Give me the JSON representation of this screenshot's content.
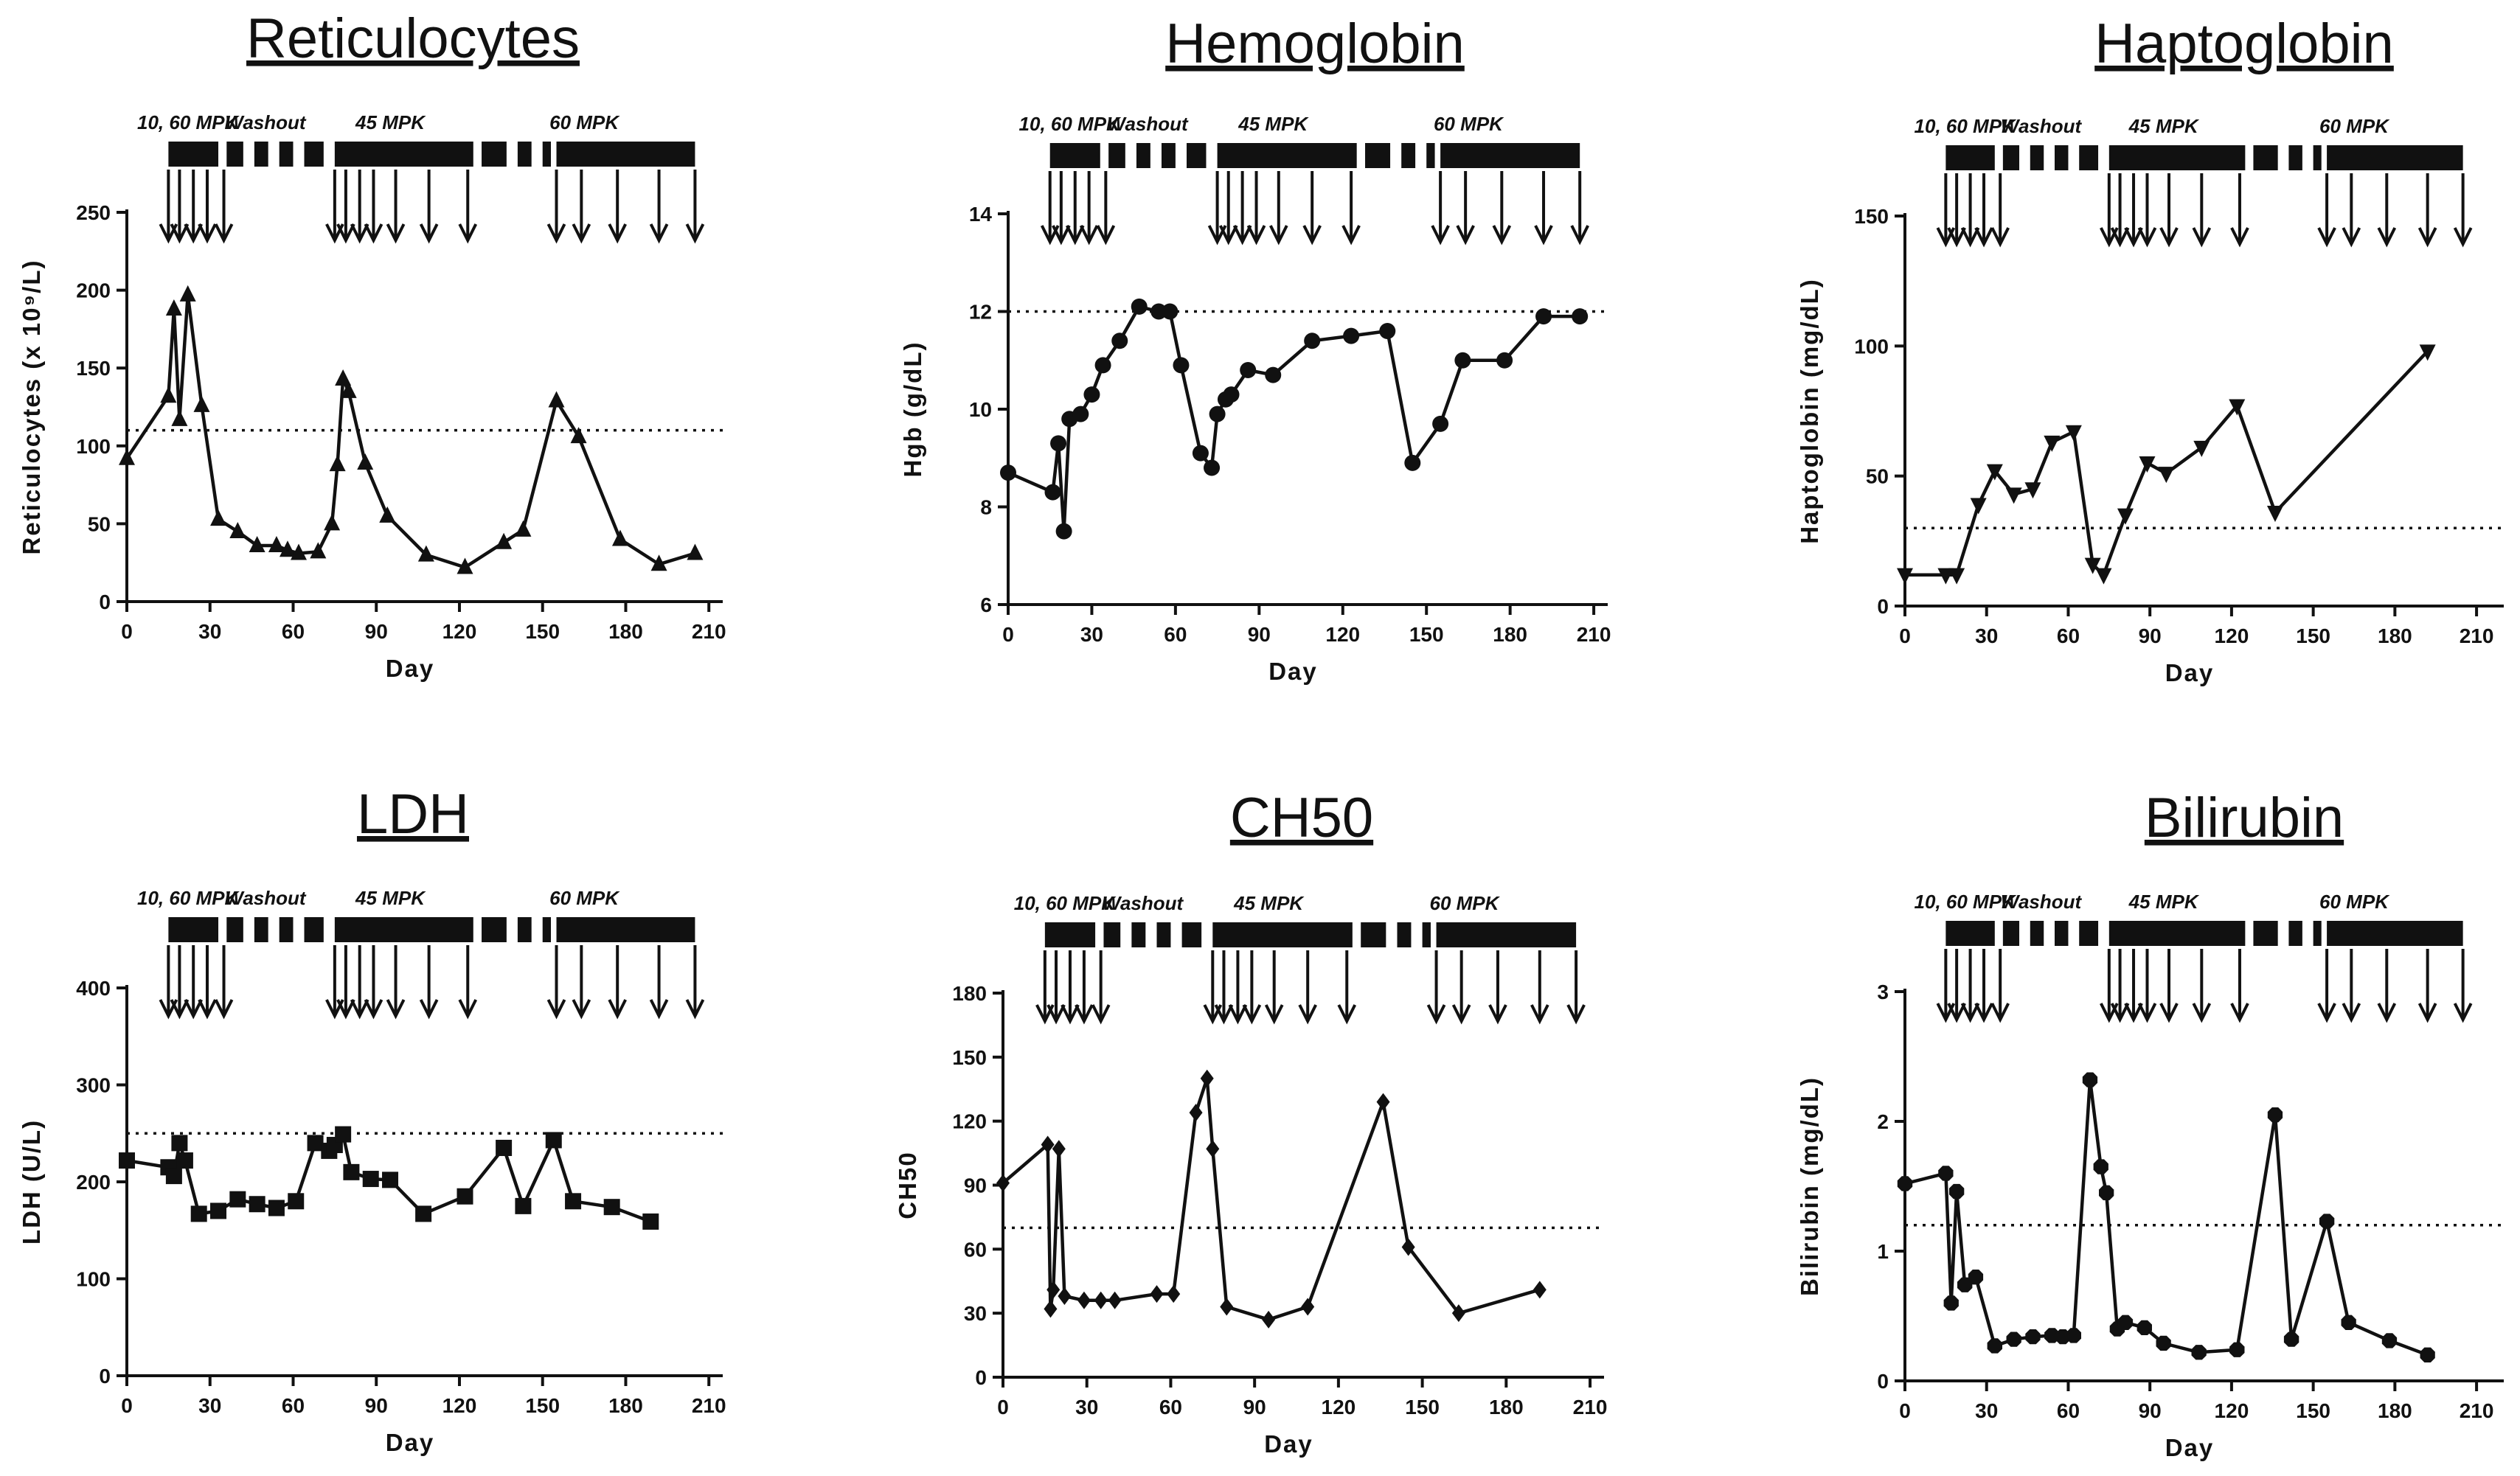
{
  "chart_data": [
    {
      "id": "reticulocytes",
      "type": "line",
      "title": "Reticulocytes",
      "xlabel": "Day",
      "ylabel": "Reticulocytes (x 10⁹/L)",
      "xlim": [
        0,
        215
      ],
      "ylim": [
        0,
        250
      ],
      "xticks": [
        0,
        30,
        60,
        90,
        120,
        150,
        180,
        210
      ],
      "yticks": [
        0,
        50,
        100,
        150,
        200,
        250
      ],
      "reference_line": 110,
      "marker": "triangle-up",
      "series": [
        {
          "name": "Reticulocytes",
          "x": [
            0,
            15,
            17,
            19,
            22,
            27,
            33,
            40,
            47,
            54,
            58,
            62,
            69,
            74,
            76,
            78,
            80,
            86,
            94,
            108,
            122,
            136,
            143,
            155,
            163,
            178,
            192,
            205
          ],
          "y": [
            92,
            132,
            188,
            117,
            197,
            126,
            53,
            45,
            36,
            36,
            33,
            31,
            32,
            50,
            88,
            143,
            135,
            89,
            55,
            30,
            22,
            38,
            46,
            129,
            106,
            40,
            24,
            31
          ]
        }
      ],
      "dosing": {
        "phase_labels": [
          "10, 60 MPK",
          "Washout",
          "45 MPK",
          "60 MPK"
        ],
        "dose_days": [
          15,
          19,
          24,
          29,
          35,
          75,
          79,
          84,
          89,
          97,
          109,
          123,
          155,
          164,
          177,
          192,
          205
        ]
      }
    },
    {
      "id": "hemoglobin",
      "type": "line",
      "title": "Hemoglobin",
      "xlabel": "Day",
      "ylabel": "Hgb (g/dL)",
      "xlim": [
        0,
        215
      ],
      "ylim": [
        6,
        14
      ],
      "xticks": [
        0,
        30,
        60,
        90,
        120,
        150,
        180,
        210
      ],
      "yticks": [
        6,
        8,
        10,
        12,
        14
      ],
      "reference_line": 12,
      "marker": "circle",
      "series": [
        {
          "name": "Hgb",
          "x": [
            0,
            16,
            18,
            20,
            22,
            26,
            30,
            34,
            40,
            47,
            54,
            58,
            62,
            69,
            73,
            75,
            78,
            80,
            86,
            95,
            109,
            123,
            136,
            145,
            155,
            163,
            178,
            192,
            205
          ],
          "y": [
            8.7,
            8.3,
            9.3,
            7.5,
            9.8,
            9.9,
            10.3,
            10.9,
            11.4,
            12.1,
            12.0,
            12.0,
            10.9,
            9.1,
            8.8,
            9.9,
            10.2,
            10.3,
            10.8,
            10.7,
            11.4,
            11.5,
            11.6,
            8.9,
            9.7,
            11.0,
            11.0,
            11.9,
            11.9
          ]
        }
      ],
      "dosing": {
        "phase_labels": [
          "10, 60 MPK",
          "Washout",
          "45 MPK",
          "60 MPK"
        ],
        "dose_days": [
          15,
          19,
          24,
          29,
          35,
          75,
          79,
          84,
          89,
          97,
          109,
          123,
          155,
          164,
          177,
          192,
          205
        ]
      }
    },
    {
      "id": "haptoglobin",
      "type": "line",
      "title": "Haptoglobin",
      "xlabel": "Day",
      "ylabel": "Haptoglobin (mg/dL)",
      "xlim": [
        0,
        220
      ],
      "ylim": [
        0,
        150
      ],
      "xticks": [
        0,
        30,
        60,
        90,
        120,
        150,
        180,
        210
      ],
      "yticks": [
        0,
        50,
        100,
        150
      ],
      "reference_line": 30,
      "marker": "triangle-down",
      "series": [
        {
          "name": "Haptoglobin",
          "x": [
            0,
            15,
            19,
            27,
            33,
            40,
            47,
            54,
            62,
            69,
            73,
            81,
            89,
            96,
            109,
            122,
            136,
            192
          ],
          "y": [
            12,
            12,
            12,
            39,
            52,
            43,
            45,
            63,
            67,
            16,
            12,
            35,
            55,
            51,
            61,
            77,
            36,
            98
          ]
        }
      ],
      "dosing": {
        "phase_labels": [
          "10, 60 MPK",
          "Washout",
          "45 MPK",
          "60 MPK"
        ],
        "dose_days": [
          15,
          19,
          24,
          29,
          35,
          75,
          79,
          84,
          89,
          97,
          109,
          123,
          155,
          164,
          177,
          192,
          205
        ]
      }
    },
    {
      "id": "ldh",
      "type": "line",
      "title": "LDH",
      "xlabel": "Day",
      "ylabel": "LDH (U/L)",
      "xlim": [
        0,
        215
      ],
      "ylim": [
        0,
        400
      ],
      "xticks": [
        0,
        30,
        60,
        90,
        120,
        150,
        180,
        210
      ],
      "yticks": [
        0,
        100,
        200,
        300,
        400
      ],
      "reference_line": 250,
      "marker": "square",
      "series": [
        {
          "name": "LDH",
          "x": [
            0,
            15,
            17,
            19,
            21,
            26,
            33,
            40,
            47,
            54,
            61,
            68,
            73,
            75,
            78,
            81,
            88,
            95,
            107,
            122,
            136,
            143,
            154,
            161,
            175,
            189
          ],
          "y": [
            222,
            215,
            206,
            240,
            222,
            167,
            170,
            182,
            177,
            173,
            180,
            240,
            232,
            238,
            249,
            210,
            203,
            202,
            167,
            185,
            235,
            175,
            243,
            180,
            174,
            159
          ]
        }
      ],
      "dosing": {
        "phase_labels": [
          "10, 60 MPK",
          "Washout",
          "45 MPK",
          "60 MPK"
        ],
        "dose_days": [
          15,
          19,
          24,
          29,
          35,
          75,
          79,
          84,
          89,
          97,
          109,
          123,
          155,
          164,
          177,
          192,
          205
        ]
      }
    },
    {
      "id": "ch50",
      "type": "line",
      "title": "CH50",
      "xlabel": "Day",
      "ylabel": "CH50",
      "xlim": [
        0,
        215
      ],
      "ylim": [
        0,
        180
      ],
      "xticks": [
        0,
        30,
        60,
        90,
        120,
        150,
        180,
        210
      ],
      "yticks": [
        0,
        30,
        60,
        90,
        120,
        150,
        180
      ],
      "reference_line": 70,
      "marker": "diamond",
      "series": [
        {
          "name": "CH50",
          "x": [
            0,
            16,
            17,
            18,
            20,
            22,
            29,
            35,
            40,
            55,
            61,
            69,
            73,
            75,
            80,
            95,
            109,
            136,
            145,
            163,
            192
          ],
          "y": [
            91,
            109,
            32,
            41,
            107,
            38,
            36,
            36,
            36,
            39,
            39,
            124,
            140,
            107,
            33,
            27,
            33,
            129,
            61,
            30,
            41
          ]
        }
      ],
      "dosing": {
        "phase_labels": [
          "10, 60 MPK",
          "Washout",
          "45 MPK",
          "60 MPK"
        ],
        "dose_days": [
          15,
          19,
          24,
          29,
          35,
          75,
          79,
          84,
          89,
          97,
          109,
          123,
          155,
          164,
          177,
          192,
          205
        ]
      }
    },
    {
      "id": "bilirubin",
      "type": "line",
      "title": "Bilirubin",
      "xlabel": "Day",
      "ylabel": "Bilirubin (mg/dL)",
      "xlim": [
        0,
        220
      ],
      "ylim": [
        0,
        3
      ],
      "xticks": [
        0,
        30,
        60,
        90,
        120,
        150,
        180,
        210
      ],
      "yticks": [
        0,
        1,
        2,
        3
      ],
      "reference_line": 1.2,
      "marker": "octagon",
      "series": [
        {
          "name": "Bilirubin",
          "x": [
            0,
            15,
            17,
            19,
            22,
            26,
            33,
            40,
            47,
            54,
            58,
            62,
            68,
            72,
            74,
            78,
            81,
            88,
            95,
            108,
            122,
            136,
            142,
            155,
            163,
            178,
            192
          ],
          "y": [
            1.52,
            1.6,
            0.6,
            1.46,
            0.74,
            0.8,
            0.27,
            0.32,
            0.34,
            0.35,
            0.34,
            0.35,
            2.32,
            1.65,
            1.45,
            0.4,
            0.45,
            0.41,
            0.29,
            0.22,
            0.24,
            2.05,
            0.32,
            1.23,
            0.45,
            0.31,
            0.2
          ]
        }
      ],
      "dosing": {
        "phase_labels": [
          "10, 60 MPK",
          "Washout",
          "45 MPK",
          "60 MPK"
        ],
        "dose_days": [
          15,
          19,
          24,
          29,
          35,
          75,
          79,
          84,
          89,
          97,
          109,
          123,
          155,
          164,
          177,
          192,
          205
        ]
      }
    }
  ]
}
